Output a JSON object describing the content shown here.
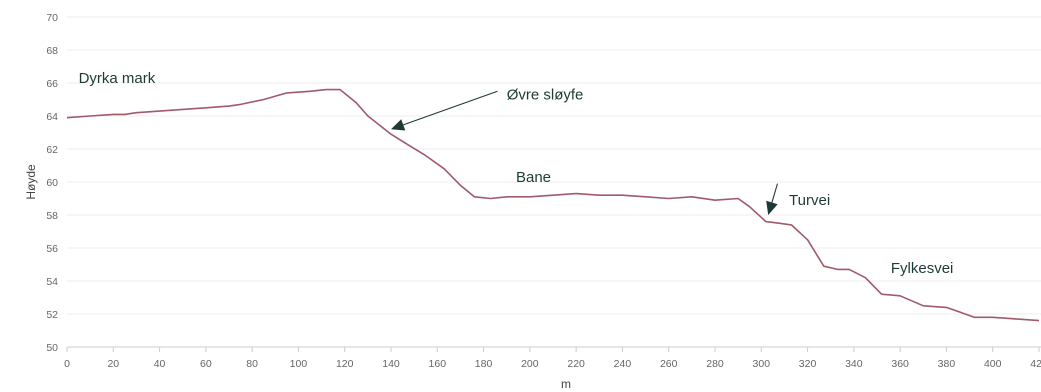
{
  "chart_data": {
    "type": "line",
    "xlabel": "m",
    "ylabel": "Høyde",
    "xlim": [
      0,
      420
    ],
    "ylim": [
      50,
      70
    ],
    "x_ticks": [
      "0",
      "20",
      "40",
      "60",
      "80",
      "100",
      "120",
      "140",
      "160",
      "180",
      "200",
      "220",
      "240",
      "260",
      "280",
      "300",
      "320",
      "340",
      "360",
      "380",
      "400",
      "420"
    ],
    "y_ticks": [
      "50",
      "52",
      "54",
      "56",
      "58",
      "60",
      "62",
      "64",
      "66",
      "68",
      "70"
    ],
    "grid": "horizontal",
    "colors": {
      "line": "#a05a6a",
      "annotation_text": "#1f3a36",
      "arrow": "#1f3a36"
    },
    "series": [
      {
        "x": [
          0,
          10,
          20,
          25,
          30,
          40,
          50,
          60,
          70,
          75,
          85,
          95,
          105,
          112,
          118,
          125,
          130,
          140,
          148,
          155,
          163,
          170,
          176,
          183,
          190,
          200,
          210,
          220,
          230,
          240,
          250,
          260,
          270,
          280,
          290,
          295,
          302,
          308,
          313,
          320,
          327,
          333,
          338,
          345,
          352,
          360,
          370,
          380,
          386,
          392,
          400,
          410,
          420
        ],
        "y": [
          63.9,
          64.0,
          64.1,
          64.1,
          64.2,
          64.3,
          64.4,
          64.5,
          64.6,
          64.7,
          65.0,
          65.4,
          65.5,
          65.6,
          65.6,
          64.8,
          64.0,
          62.9,
          62.2,
          61.6,
          60.8,
          59.8,
          59.1,
          59.0,
          59.1,
          59.1,
          59.2,
          59.3,
          59.2,
          59.2,
          59.1,
          59.0,
          59.1,
          58.9,
          59.0,
          58.5,
          57.6,
          57.5,
          57.4,
          56.5,
          54.9,
          54.7,
          54.7,
          54.2,
          53.2,
          53.1,
          52.5,
          52.4,
          52.1,
          51.8,
          51.8,
          51.7,
          51.6
        ]
      }
    ],
    "annotations": [
      {
        "text": "Dyrka mark",
        "x": 5,
        "y": 66.0,
        "arrow": null
      },
      {
        "text": "Øvre sløyfe",
        "x": 190,
        "y": 65.0,
        "arrow": {
          "from_x": 186,
          "from_y": 65.5,
          "to_x": 140,
          "to_y": 63.2
        }
      },
      {
        "text": "Bane",
        "x": 194,
        "y": 60.0,
        "arrow": null
      },
      {
        "text": "Turvei",
        "x": 312,
        "y": 58.6,
        "arrow": {
          "from_x": 307,
          "from_y": 59.9,
          "to_x": 303,
          "to_y": 58.0
        }
      },
      {
        "text": "Fylkesvei",
        "x": 356,
        "y": 54.5,
        "arrow": null
      }
    ]
  }
}
